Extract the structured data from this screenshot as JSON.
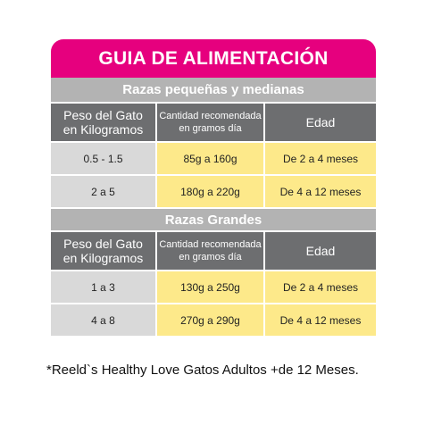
{
  "title": "GUIA DE ALIMENTACIÓN",
  "headers": {
    "peso": [
      "Peso del Gato",
      "en Kilogramos"
    ],
    "cantidad": [
      "Cantidad recomendada",
      "en gramos día"
    ],
    "edad": "Edad"
  },
  "sections": [
    {
      "name": "Razas pequeñas y medianas",
      "rows": [
        {
          "peso": "0.5 - 1.5",
          "cantidad": "85g a 160g",
          "edad": "De 2 a 4 meses"
        },
        {
          "peso": "2 a 5",
          "cantidad": "180g a 220g",
          "edad": "De 4 a 12 meses"
        }
      ]
    },
    {
      "name": "Razas Grandes",
      "rows": [
        {
          "peso": "1 a 3",
          "cantidad": "130g a 250g",
          "edad": "De 2 a 4 meses"
        },
        {
          "peso": "4 a 8",
          "cantidad": "270g a 290g",
          "edad": "De 4 a 12 meses"
        }
      ]
    }
  ],
  "footnote": "*Reeld`s Healthy Love Gatos Adultos +de 12 Meses.",
  "colors": {
    "title_bg": "#e6007e",
    "section_bg": "#b3b3b3",
    "header_bg": "#6d6e70",
    "weight_bg": "#d9d9d9",
    "value_bg": "#fde98a"
  }
}
